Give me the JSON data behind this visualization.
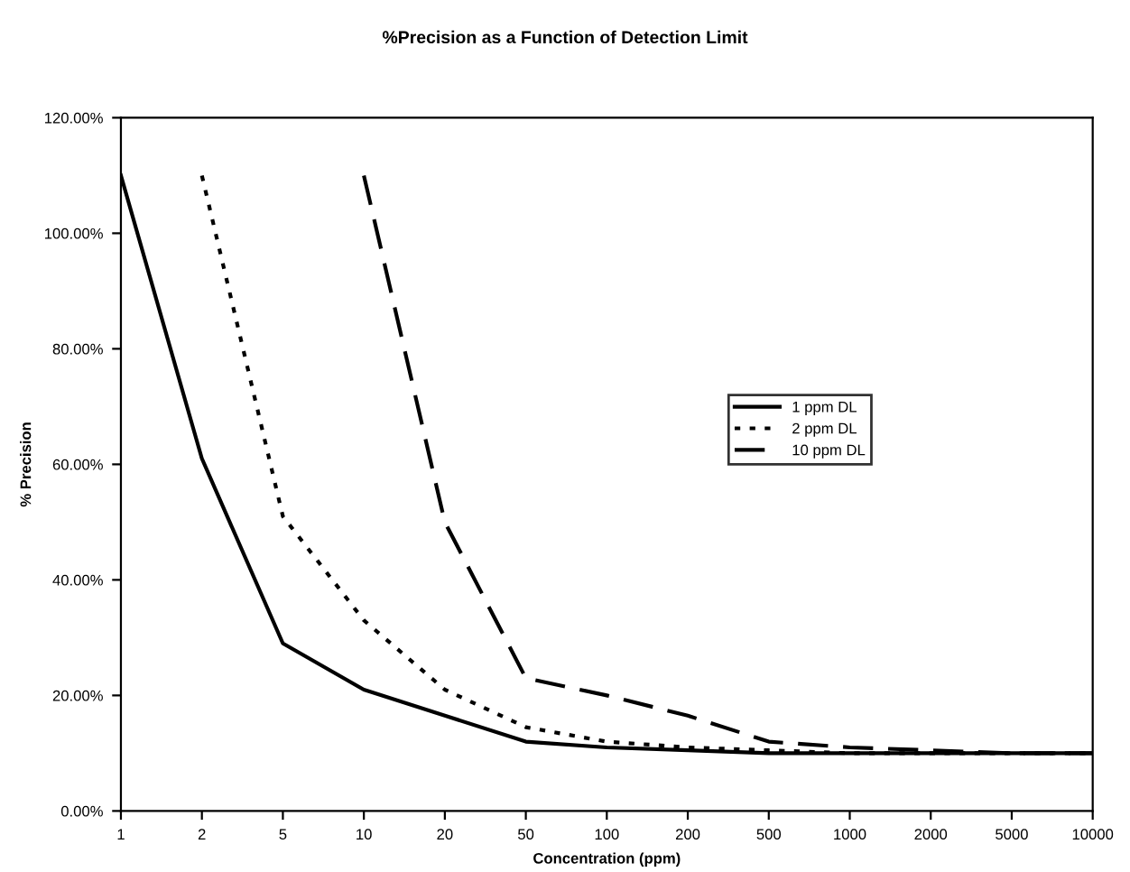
{
  "chart_data": {
    "type": "line",
    "title": "%Precision as a Function of Detection Limit",
    "xlabel": "Concentration (ppm)",
    "ylabel": "% Precision",
    "categories": [
      "1",
      "2",
      "5",
      "10",
      "20",
      "50",
      "100",
      "200",
      "500",
      "1000",
      "2000",
      "5000",
      "10000"
    ],
    "series": [
      {
        "name": "1 ppm DL",
        "color": "#000000",
        "line_style": "solid",
        "values": [
          110,
          61,
          29,
          21,
          16.5,
          12,
          11,
          10.5,
          10,
          10,
          10,
          10,
          10
        ]
      },
      {
        "name": "2 ppm DL",
        "color": "#000000",
        "line_style": "dotted",
        "values": [
          null,
          110,
          51,
          33,
          21,
          14.5,
          12,
          11,
          10.5,
          10,
          10,
          10,
          10
        ]
      },
      {
        "name": "10 ppm DL",
        "color": "#000000",
        "line_style": "dashed",
        "values": [
          null,
          null,
          null,
          110,
          50,
          23,
          20,
          16.5,
          12,
          11,
          10.5,
          10,
          10
        ]
      }
    ],
    "ylim": [
      0,
      120
    ],
    "yticks": [
      {
        "value": 0,
        "label": "0.00%"
      },
      {
        "value": 20,
        "label": "20.00%"
      },
      {
        "value": 40,
        "label": "40.00%"
      },
      {
        "value": 60,
        "label": "60.00%"
      },
      {
        "value": 80,
        "label": "80.00%"
      },
      {
        "value": 100,
        "label": "100.00%"
      },
      {
        "value": 120,
        "label": "120.00%"
      }
    ],
    "grid": false,
    "legend": "right"
  }
}
